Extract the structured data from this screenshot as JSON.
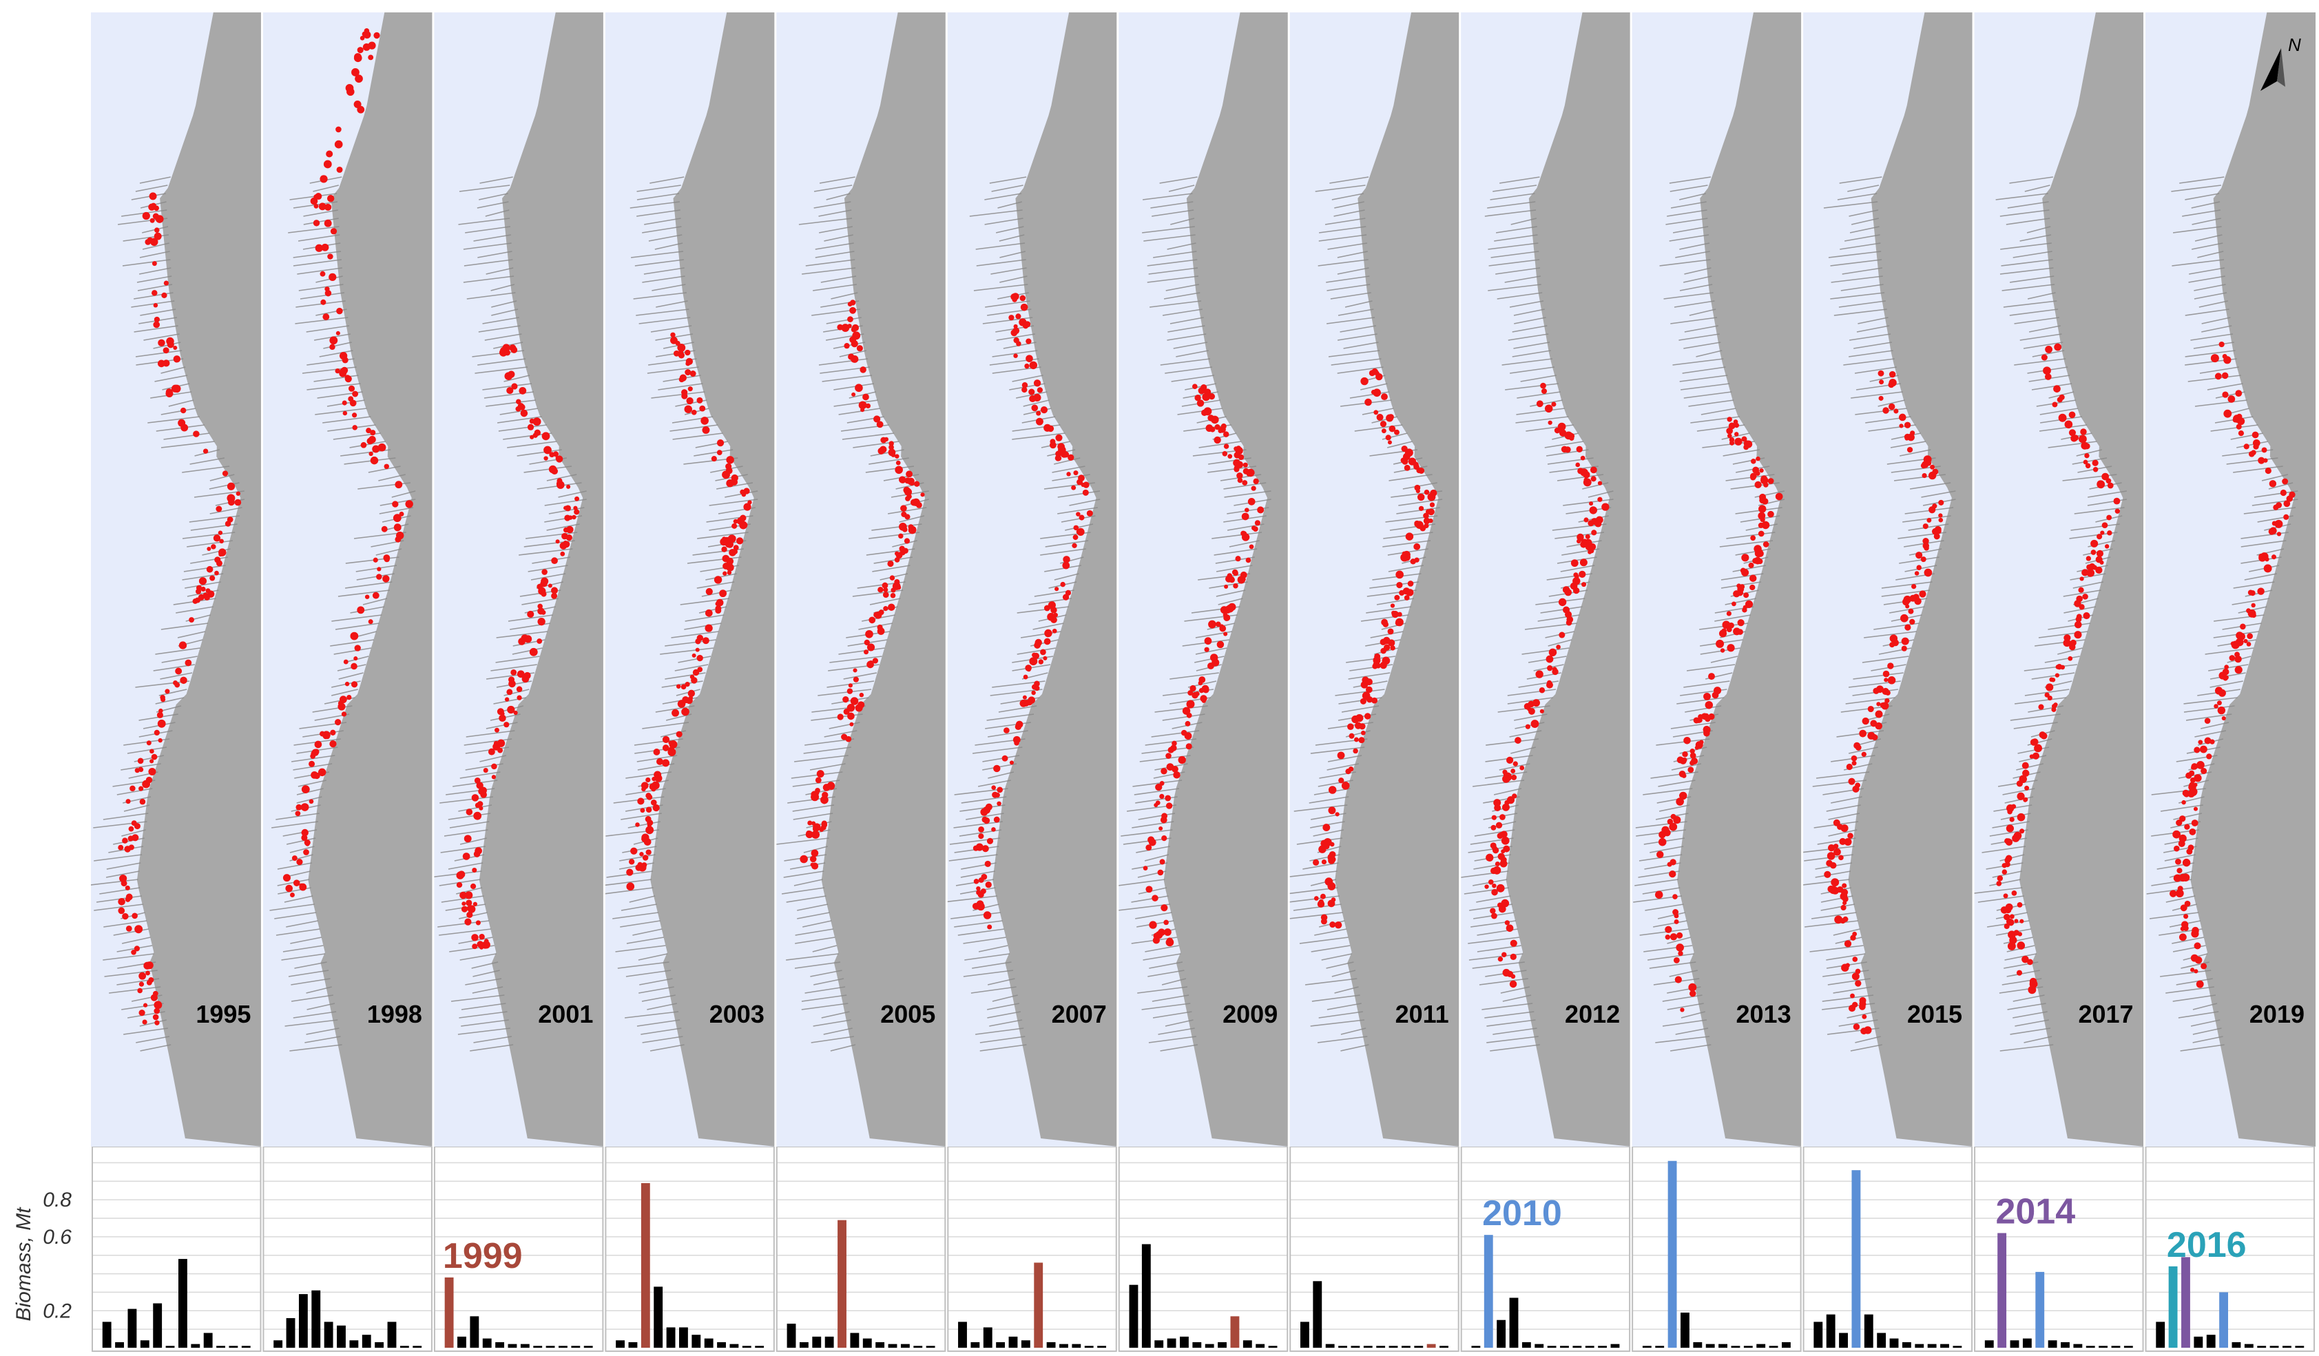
{
  "north_arrow_label": "N",
  "panels": [
    {
      "year": "1995",
      "biomass": [
        0.14,
        0.03,
        0.21,
        0.04,
        0.24,
        0.01,
        0.48,
        0.02,
        0.08,
        0.01,
        0.01,
        0.01
      ],
      "highlight_index": -1,
      "cohort_label": "",
      "cohort_color": ""
    },
    {
      "year": "1998",
      "biomass": [
        0.04,
        0.16,
        0.29,
        0.31,
        0.14,
        0.12,
        0.04,
        0.07,
        0.03,
        0.14,
        0.01,
        0.01
      ],
      "highlight_index": -1,
      "cohort_label": "",
      "cohort_color": ""
    },
    {
      "year": "2001",
      "biomass": [
        0.38,
        0.06,
        0.17,
        0.05,
        0.03,
        0.02,
        0.02,
        0.01,
        0.01,
        0.01,
        0.01,
        0.01
      ],
      "highlight_index": 0,
      "cohort_label": "1999",
      "cohort_color": "#a8483a"
    },
    {
      "year": "2003",
      "biomass": [
        0.04,
        0.03,
        0.89,
        0.33,
        0.11,
        0.11,
        0.07,
        0.05,
        0.03,
        0.02,
        0.01,
        0.01
      ],
      "highlight_index": 2,
      "cohort_label": "",
      "cohort_color": "#a8483a"
    },
    {
      "year": "2005",
      "biomass": [
        0.13,
        0.03,
        0.06,
        0.06,
        0.69,
        0.08,
        0.05,
        0.03,
        0.02,
        0.02,
        0.01,
        0.01
      ],
      "highlight_index": 4,
      "cohort_label": "",
      "cohort_color": "#a8483a"
    },
    {
      "year": "2007",
      "biomass": [
        0.14,
        0.03,
        0.11,
        0.03,
        0.06,
        0.04,
        0.46,
        0.03,
        0.02,
        0.02,
        0.01,
        0.01
      ],
      "highlight_index": 6,
      "cohort_label": "",
      "cohort_color": "#a8483a"
    },
    {
      "year": "2009",
      "biomass": [
        0.34,
        0.56,
        0.04,
        0.05,
        0.06,
        0.03,
        0.02,
        0.03,
        0.17,
        0.04,
        0.02,
        0.01
      ],
      "highlight_index": 8,
      "cohort_label": "",
      "cohort_color": "#a8483a"
    },
    {
      "year": "2011",
      "biomass": [
        0.14,
        0.36,
        0.02,
        0.01,
        0.01,
        0.01,
        0.01,
        0.01,
        0.01,
        0.01,
        0.02,
        0.01
      ],
      "highlight_index": 10,
      "cohort_label": "",
      "cohort_color": "#a8483a"
    },
    {
      "year": "2012",
      "biomass": [
        0.01,
        0.61,
        0.15,
        0.27,
        0.03,
        0.02,
        0.01,
        0.01,
        0.01,
        0.01,
        0.01,
        0.02
      ],
      "highlight_index": 1,
      "cohort_label": "2010",
      "cohort_color": "#5b8fd6"
    },
    {
      "year": "2013",
      "biomass": [
        0.01,
        0.01,
        1.01,
        0.19,
        0.03,
        0.02,
        0.02,
        0.01,
        0.01,
        0.02,
        0.01,
        0.03
      ],
      "highlight_index": 2,
      "cohort_label": "",
      "cohort_color": "#5b8fd6"
    },
    {
      "year": "2015",
      "biomass": [
        0.14,
        0.18,
        0.08,
        0.96,
        0.18,
        0.08,
        0.05,
        0.03,
        0.02,
        0.02,
        0.02,
        0.01
      ],
      "highlight_index": 3,
      "cohort_label": "",
      "cohort_color": "#5b8fd6"
    },
    {
      "year": "2017",
      "biomass": [
        0.04,
        0.62,
        0.04,
        0.05,
        0.41,
        0.04,
        0.03,
        0.02,
        0.01,
        0.01,
        0.01,
        0.01
      ],
      "highlight_index": 1,
      "cohort_label": "2014",
      "cohort_color": "#7c56a0",
      "second_highlight_index": 4,
      "second_highlight_color": "#5b8fd6"
    },
    {
      "year": "2019",
      "biomass": [
        0.14,
        0.44,
        0.49,
        0.06,
        0.07,
        0.3,
        0.03,
        0.02,
        0.01,
        0.01,
        0.01,
        0.01
      ],
      "highlight_index": 1,
      "cohort_label": "2016",
      "cohort_color": "#2aa2b8",
      "second_highlight_index": 2,
      "second_highlight_color": "#7c56a0",
      "third_highlight_index": 5,
      "third_highlight_color": "#5b8fd6"
    }
  ],
  "biomass_axis": {
    "title": "Biomass, Mt",
    "ticks": [
      "0.2",
      "0.6",
      "0.8"
    ],
    "tick_values": [
      0.2,
      0.6,
      0.8
    ],
    "max": 1.05
  },
  "colors": {
    "ocean": "#e6ecfb",
    "land": "#a8a8a8",
    "fish": "#f01414",
    "transect": "#8a8a8a",
    "bar_default": "#000000",
    "grid": "#d9d9d9"
  }
}
